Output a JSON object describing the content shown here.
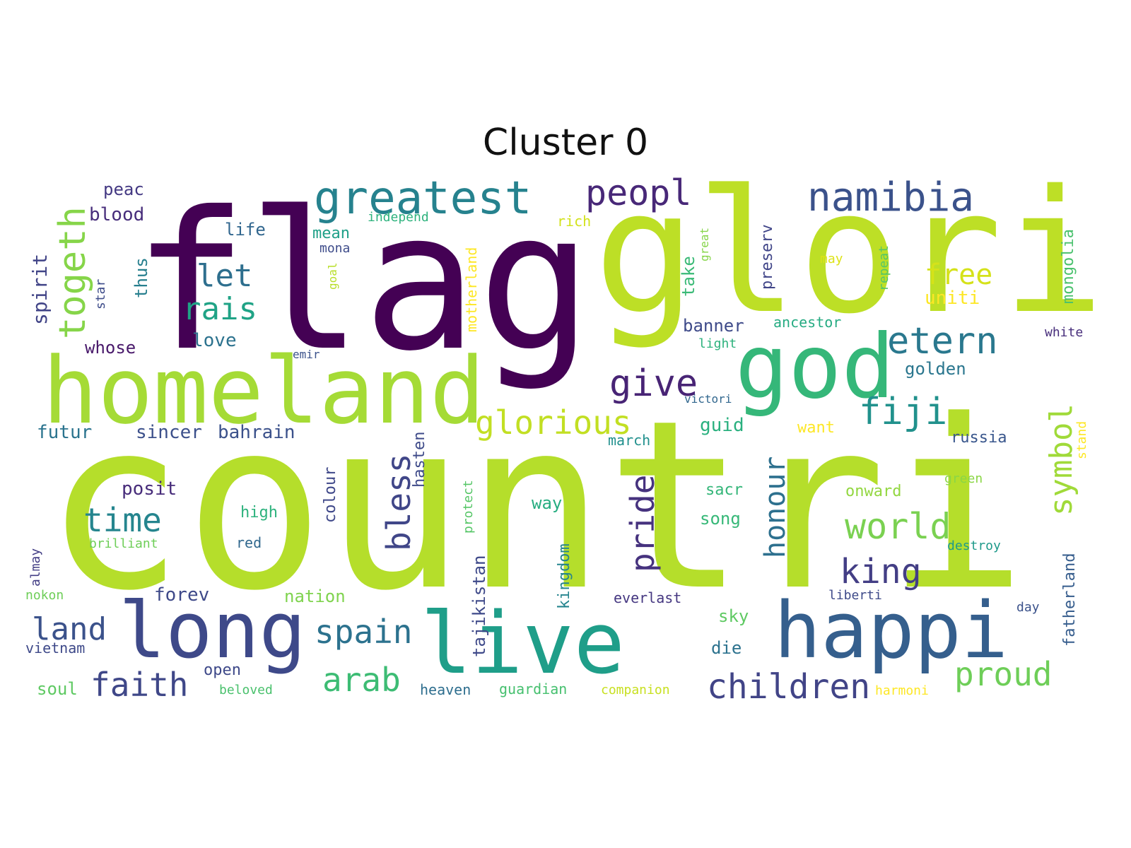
{
  "chart_data": {
    "type": "wordcloud",
    "title": "Cluster 0",
    "background": "#ffffff",
    "colormap": "viridis",
    "words": [
      {
        "text": "countri",
        "weight": 1.0,
        "color": "#b5de2b"
      },
      {
        "text": "flag",
        "weight": 0.95,
        "color": "#440154"
      },
      {
        "text": "glori",
        "weight": 0.84,
        "color": "#bddf26"
      },
      {
        "text": "homeland",
        "weight": 0.52,
        "color": "#a5db36"
      },
      {
        "text": "god",
        "weight": 0.5,
        "color": "#35b779"
      },
      {
        "text": "live",
        "weight": 0.5,
        "color": "#1f9e89"
      },
      {
        "text": "happi",
        "weight": 0.43,
        "color": "#355f8d"
      },
      {
        "text": "long",
        "weight": 0.43,
        "color": "#3e4989"
      },
      {
        "text": "greatest",
        "weight": 0.24,
        "color": "#26828e"
      },
      {
        "text": "namibia",
        "weight": 0.22,
        "color": "#3b528b"
      },
      {
        "text": "peopl",
        "weight": 0.2,
        "color": "#482878"
      },
      {
        "text": "etern",
        "weight": 0.2,
        "color": "#2a788e"
      },
      {
        "text": "fiji",
        "weight": 0.2,
        "color": "#21918c"
      },
      {
        "text": "give",
        "weight": 0.2,
        "color": "#482475"
      },
      {
        "text": "togeth",
        "weight": 0.2,
        "color": "#86d549"
      },
      {
        "text": "glorious",
        "weight": 0.18,
        "color": "#c2df23"
      },
      {
        "text": "children",
        "weight": 0.18,
        "color": "#414487"
      },
      {
        "text": "world",
        "weight": 0.18,
        "color": "#7ad151"
      },
      {
        "text": "king",
        "weight": 0.18,
        "color": "#433e85"
      },
      {
        "text": "time",
        "weight": 0.17,
        "color": "#25858e"
      },
      {
        "text": "spain",
        "weight": 0.17,
        "color": "#2c728e"
      },
      {
        "text": "proud",
        "weight": 0.17,
        "color": "#6ece58"
      },
      {
        "text": "arab",
        "weight": 0.17,
        "color": "#3dbc74"
      },
      {
        "text": "bless",
        "weight": 0.17,
        "color": "#404688"
      },
      {
        "text": "pride",
        "weight": 0.17,
        "color": "#46327e"
      },
      {
        "text": "symbol",
        "weight": 0.17,
        "color": "#a0da39"
      },
      {
        "text": "honour",
        "weight": 0.15,
        "color": "#2d708e"
      },
      {
        "text": "faith",
        "weight": 0.15,
        "color": "#3f4788"
      },
      {
        "text": "land",
        "weight": 0.15,
        "color": "#3b528b"
      },
      {
        "text": "let",
        "weight": 0.14,
        "color": "#2e6f8e"
      },
      {
        "text": "rais",
        "weight": 0.14,
        "color": "#20a386"
      },
      {
        "text": "free",
        "weight": 0.14,
        "color": "#d5e21a"
      },
      {
        "text": "mongolia",
        "weight": 0.08,
        "color": "#4ac16d"
      },
      {
        "text": "spirit",
        "weight": 0.09,
        "color": "#414487"
      },
      {
        "text": "blood",
        "weight": 0.09,
        "color": "#472d7b"
      },
      {
        "text": "peac",
        "weight": 0.09,
        "color": "#443983"
      },
      {
        "text": "life",
        "weight": 0.08,
        "color": "#31668e"
      },
      {
        "text": "mean",
        "weight": 0.08,
        "color": "#1fa088"
      },
      {
        "text": "independ",
        "weight": 0.07,
        "color": "#2db27d"
      },
      {
        "text": "love",
        "weight": 0.08,
        "color": "#2c728e"
      },
      {
        "text": "whose",
        "weight": 0.08,
        "color": "#48186a"
      },
      {
        "text": "thus",
        "weight": 0.08,
        "color": "#277f8e"
      },
      {
        "text": "banner",
        "weight": 0.08,
        "color": "#3e4a89"
      },
      {
        "text": "ancestor",
        "weight": 0.07,
        "color": "#25ab82"
      },
      {
        "text": "golden",
        "weight": 0.07,
        "color": "#2a768e"
      },
      {
        "text": "uniti",
        "weight": 0.08,
        "color": "#fde725"
      },
      {
        "text": "take",
        "weight": 0.08,
        "color": "#3aba76"
      },
      {
        "text": "preserv",
        "weight": 0.07,
        "color": "#404588"
      },
      {
        "text": "rich",
        "weight": 0.07,
        "color": "#d2e21b"
      },
      {
        "text": "mona",
        "weight": 0.06,
        "color": "#3e4c8a"
      },
      {
        "text": "motherland",
        "weight": 0.07,
        "color": "#fde725"
      },
      {
        "text": "futur",
        "weight": 0.08,
        "color": "#2b748e"
      },
      {
        "text": "sincer",
        "weight": 0.08,
        "color": "#3c508b"
      },
      {
        "text": "bahrain",
        "weight": 0.08,
        "color": "#3b518b"
      },
      {
        "text": "posit",
        "weight": 0.08,
        "color": "#472c7a"
      },
      {
        "text": "colour",
        "weight": 0.07,
        "color": "#3f4889"
      },
      {
        "text": "hasten",
        "weight": 0.07,
        "color": "#3e4a89"
      },
      {
        "text": "guid",
        "weight": 0.08,
        "color": "#2ab07f"
      },
      {
        "text": "want",
        "weight": 0.07,
        "color": "#fde725"
      },
      {
        "text": "russia",
        "weight": 0.07,
        "color": "#39568c"
      },
      {
        "text": "march",
        "weight": 0.07,
        "color": "#21908d"
      },
      {
        "text": "victori",
        "weight": 0.05,
        "color": "#31678e"
      },
      {
        "text": "sacr",
        "weight": 0.07,
        "color": "#34b679"
      },
      {
        "text": "song",
        "weight": 0.07,
        "color": "#37b878"
      },
      {
        "text": "onward",
        "weight": 0.07,
        "color": "#93d741"
      },
      {
        "text": "way",
        "weight": 0.07,
        "color": "#27ad81"
      },
      {
        "text": "kingdom",
        "weight": 0.07,
        "color": "#25848e"
      },
      {
        "text": "protect",
        "weight": 0.06,
        "color": "#56c667"
      },
      {
        "text": "tajikistan",
        "weight": 0.07,
        "color": "#3e4989"
      },
      {
        "text": "high",
        "weight": 0.07,
        "color": "#2db27d"
      },
      {
        "text": "red",
        "weight": 0.06,
        "color": "#31688e"
      },
      {
        "text": "brilliant",
        "weight": 0.06,
        "color": "#6ece58"
      },
      {
        "text": "forev",
        "weight": 0.08,
        "color": "#3e4989"
      },
      {
        "text": "nation",
        "weight": 0.08,
        "color": "#7fd34e"
      },
      {
        "text": "everlast",
        "weight": 0.06,
        "color": "#453781"
      },
      {
        "text": "liberti",
        "weight": 0.06,
        "color": "#3e4a89"
      },
      {
        "text": "destroy",
        "weight": 0.06,
        "color": "#1f9a8a"
      },
      {
        "text": "fatherland",
        "weight": 0.07,
        "color": "#365d8d"
      },
      {
        "text": "stand",
        "weight": 0.06,
        "color": "#fde725"
      },
      {
        "text": "green",
        "weight": 0.06,
        "color": "#8bd646"
      },
      {
        "text": "day",
        "weight": 0.06,
        "color": "#3b528b"
      },
      {
        "text": "sky",
        "weight": 0.07,
        "color": "#5ec962"
      },
      {
        "text": "die",
        "weight": 0.07,
        "color": "#2c728e"
      },
      {
        "text": "open",
        "weight": 0.07,
        "color": "#3e4989"
      },
      {
        "text": "beloved",
        "weight": 0.06,
        "color": "#4ac16d"
      },
      {
        "text": "soul",
        "weight": 0.07,
        "color": "#5ec962"
      },
      {
        "text": "vietnam",
        "weight": 0.06,
        "color": "#3e4989"
      },
      {
        "text": "heaven",
        "weight": 0.07,
        "color": "#2e6e8e"
      },
      {
        "text": "guardian",
        "weight": 0.07,
        "color": "#46c06f"
      },
      {
        "text": "companion",
        "weight": 0.06,
        "color": "#c8e020"
      },
      {
        "text": "harmoni",
        "weight": 0.06,
        "color": "#fde725"
      },
      {
        "text": "white",
        "weight": 0.06,
        "color": "#472d7b"
      },
      {
        "text": "star",
        "weight": 0.05,
        "color": "#3e4c8a"
      },
      {
        "text": "goal",
        "weight": 0.05,
        "color": "#b8de29"
      },
      {
        "text": "emir",
        "weight": 0.05,
        "color": "#3b528b"
      },
      {
        "text": "light",
        "weight": 0.05,
        "color": "#2db27d"
      },
      {
        "text": "repeat",
        "weight": 0.05,
        "color": "#56c667"
      },
      {
        "text": "great",
        "weight": 0.05,
        "color": "#86d549"
      },
      {
        "text": "may",
        "weight": 0.05,
        "color": "#dde318"
      },
      {
        "text": "nokon",
        "weight": 0.05,
        "color": "#6ece58"
      },
      {
        "text": "almay",
        "weight": 0.05,
        "color": "#433e85"
      }
    ]
  }
}
